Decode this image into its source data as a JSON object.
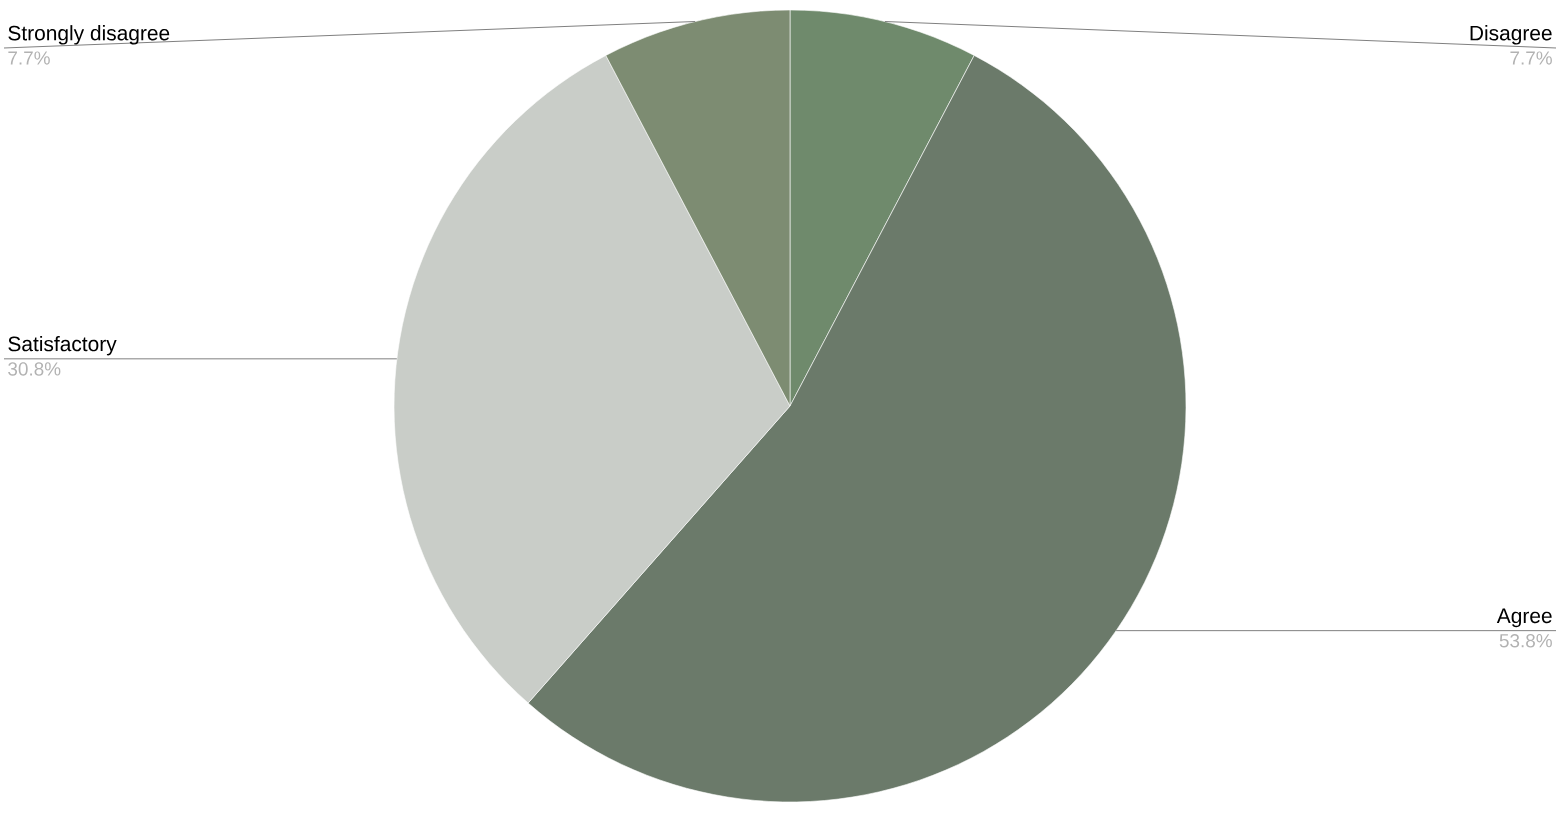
{
  "chart_data": {
    "type": "pie",
    "categories": [
      "Disagree",
      "Agree",
      "Satisfactory",
      "Strongly disagree"
    ],
    "values": [
      7.7,
      53.8,
      30.8,
      7.7
    ],
    "value_labels": [
      "7.7%",
      "53.8%",
      "30.8%",
      "7.7%"
    ],
    "colors": [
      "#6f8a6c",
      "#6b7a6a",
      "#c9cdc8",
      "#7d8c72"
    ]
  }
}
